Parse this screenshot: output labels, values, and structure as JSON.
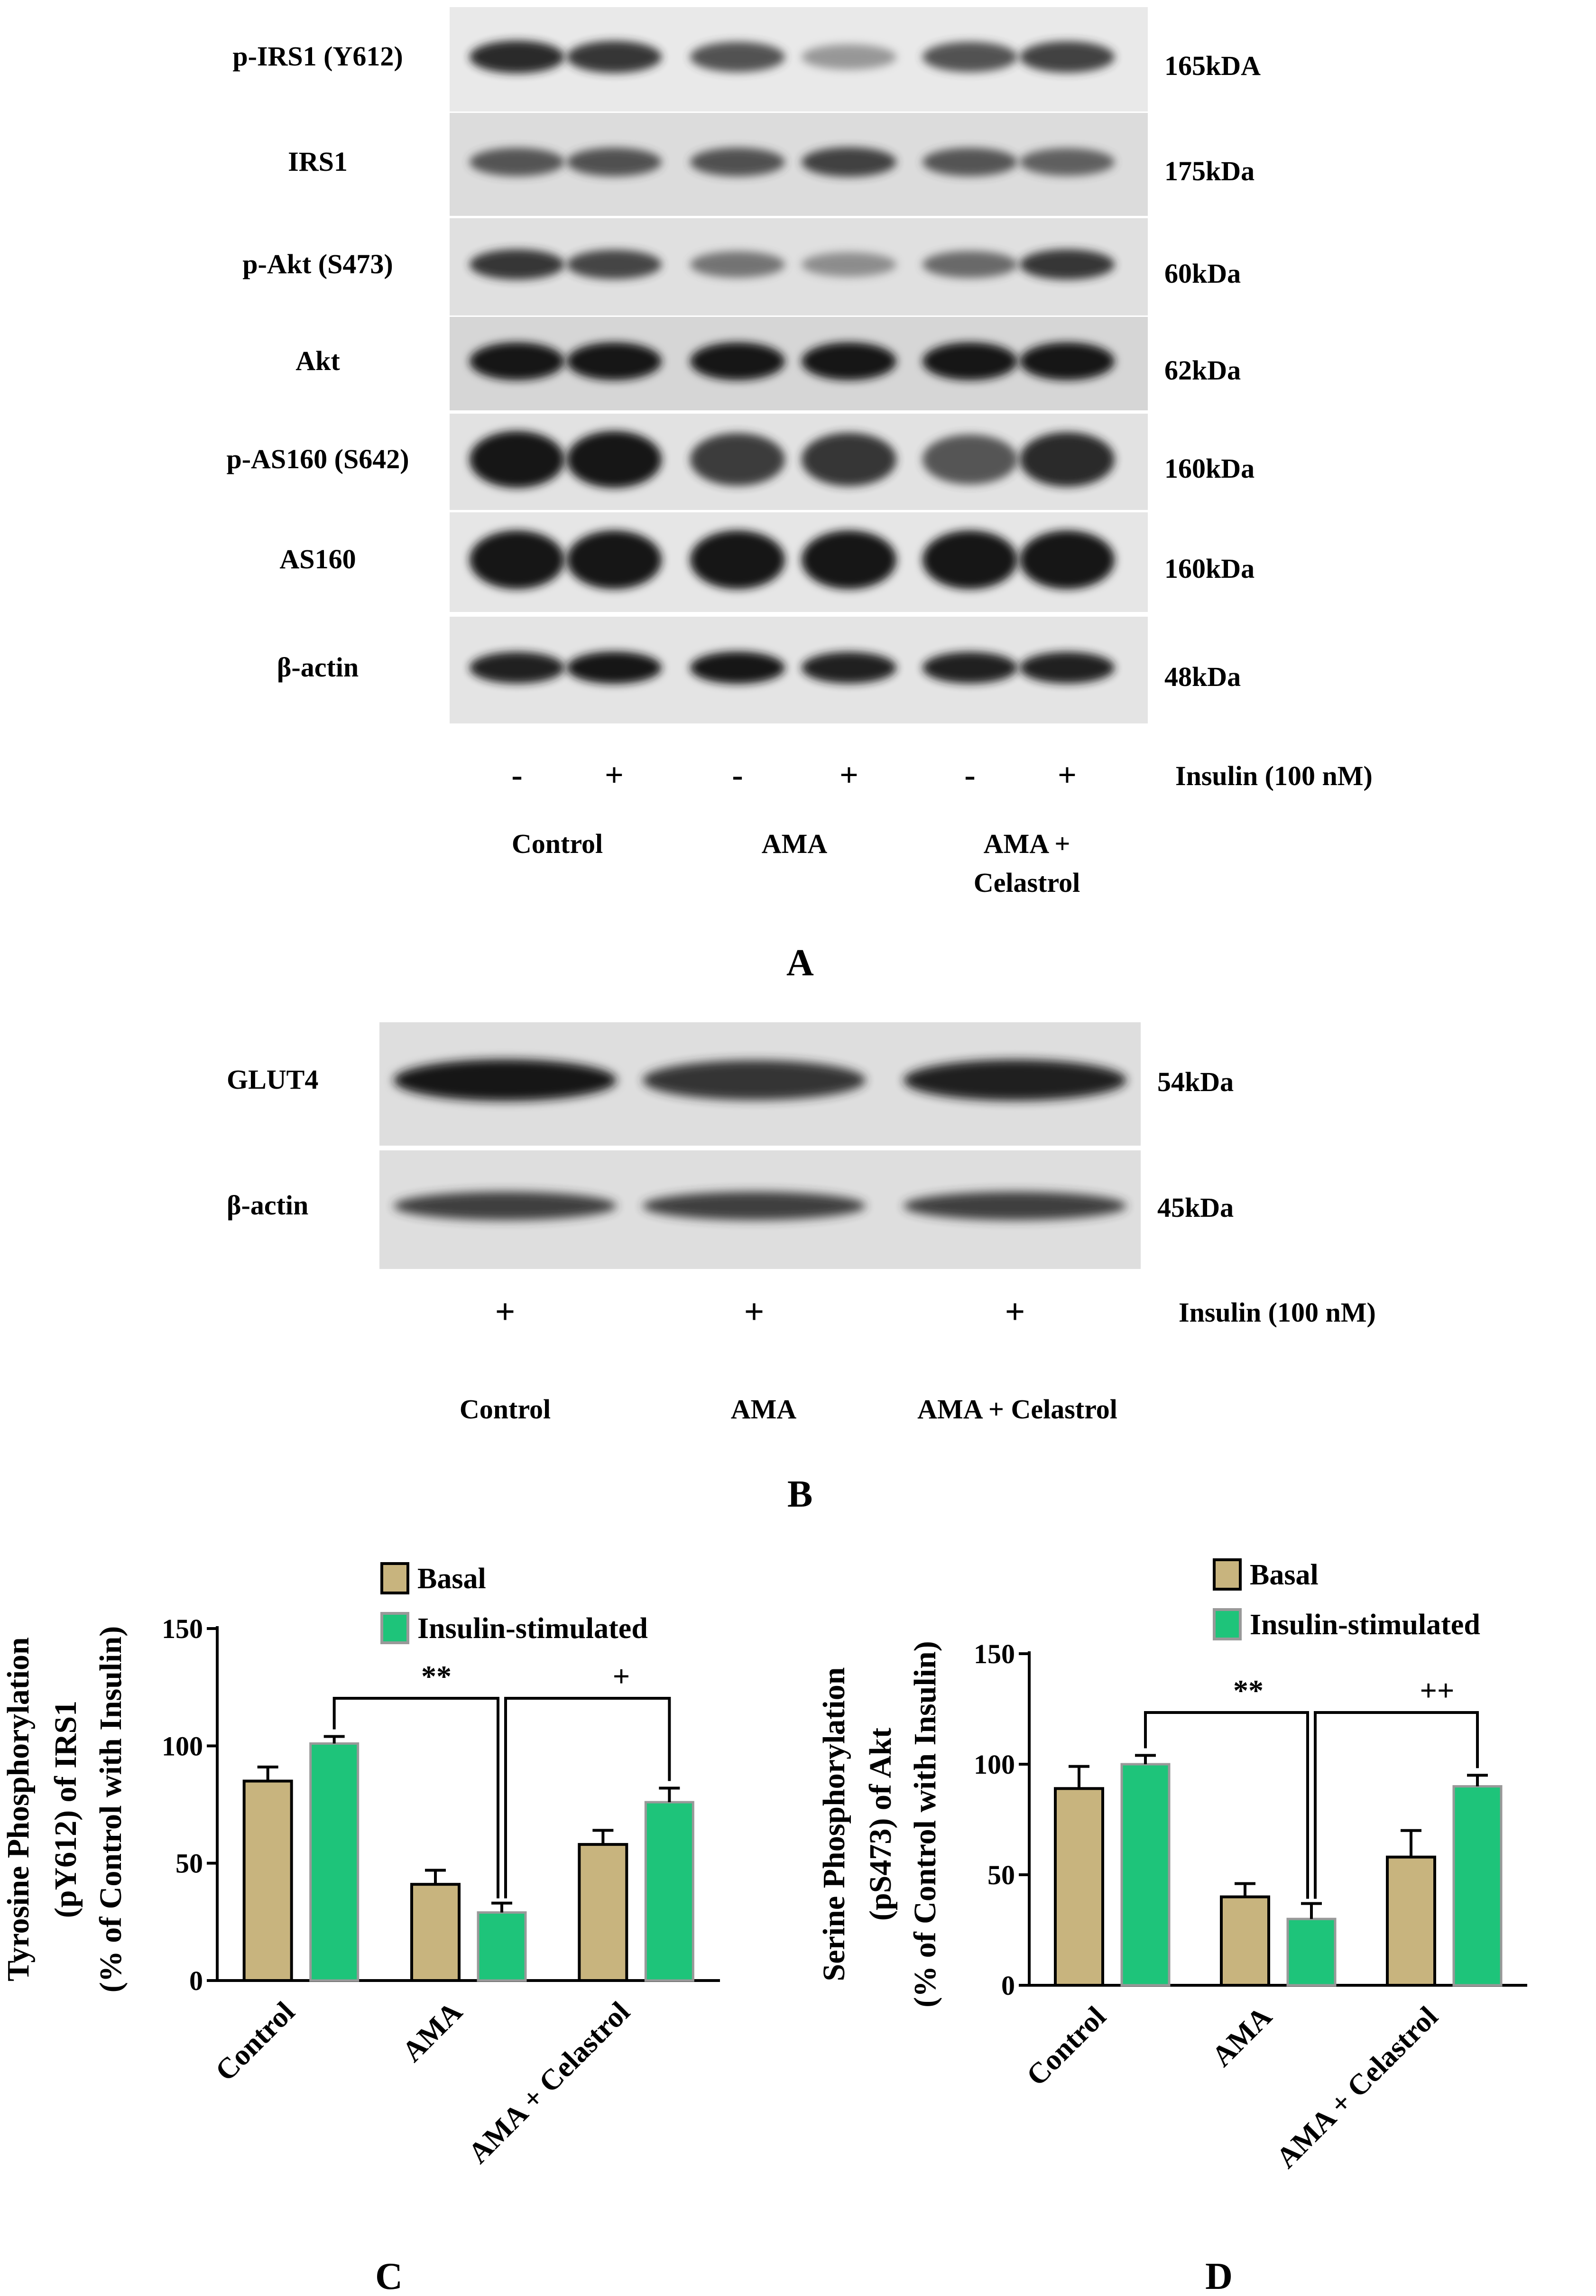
{
  "panel_a": {
    "letter": "A",
    "rows": [
      {
        "name": "p-IRS1 (Y612)",
        "mw": "165kDA"
      },
      {
        "name": "IRS1",
        "mw": "175kDa"
      },
      {
        "name": "p-Akt (S473)",
        "mw": "60kDa"
      },
      {
        "name": "Akt",
        "mw": "62kDa"
      },
      {
        "name": "p-AS160 (S642)",
        "mw": "160kDa"
      },
      {
        "name": "AS160",
        "mw": "160kDa"
      },
      {
        "name": "β-actin",
        "mw": "48kDa"
      }
    ],
    "insulin_signs": [
      "-",
      "+",
      "-",
      "+",
      "-",
      "+"
    ],
    "insulin_label": "Insulin (100 nM)",
    "groups": [
      "Control",
      "AMA",
      "AMA +",
      "Celastrol"
    ]
  },
  "panel_b": {
    "letter": "B",
    "rows": [
      {
        "name": "GLUT4",
        "mw": "54kDa"
      },
      {
        "name": "β-actin",
        "mw": "45kDa"
      }
    ],
    "insulin_signs": [
      "+",
      "+",
      "+"
    ],
    "insulin_label": "Insulin (100 nM)",
    "groups": [
      "Control",
      "AMA",
      "AMA + Celastrol"
    ]
  },
  "chart_data": [
    {
      "type": "bar",
      "panel": "C",
      "ylabel": [
        "Tyrosine Phosphorylation",
        "(pY612) of IRS1",
        "(% of Control with Insulin)"
      ],
      "categories": [
        "Control",
        "AMA",
        "AMA + Celastrol"
      ],
      "series": [
        {
          "name": "Basal",
          "values": [
            85,
            41,
            58
          ],
          "errors": [
            6,
            6,
            6
          ],
          "color": "#c8b47e"
        },
        {
          "name": "Insulin-stimulated",
          "values": [
            101,
            29,
            76
          ],
          "errors": [
            3,
            4,
            6
          ],
          "color": "#1ec47a"
        }
      ],
      "ylim": [
        0,
        150
      ],
      "yticks": [
        0,
        50,
        100,
        150
      ],
      "annotations": [
        "**",
        "+"
      ],
      "legend": "top"
    },
    {
      "type": "bar",
      "panel": "D",
      "ylabel": [
        "Serine Phosphorylation",
        "(pS473) of Akt",
        "(% of Control with Insulin)"
      ],
      "categories": [
        "Control",
        "AMA",
        "AMA + Celastrol"
      ],
      "series": [
        {
          "name": "Basal",
          "values": [
            89,
            40,
            58
          ],
          "errors": [
            10,
            6,
            12
          ],
          "color": "#c8b47e"
        },
        {
          "name": "Insulin-stimulated",
          "values": [
            100,
            30,
            90
          ],
          "errors": [
            4,
            7,
            5
          ],
          "color": "#1ec47a"
        }
      ],
      "ylim": [
        0,
        150
      ],
      "yticks": [
        0,
        50,
        100,
        150
      ],
      "annotations": [
        "**",
        "++"
      ],
      "legend": "top"
    }
  ]
}
